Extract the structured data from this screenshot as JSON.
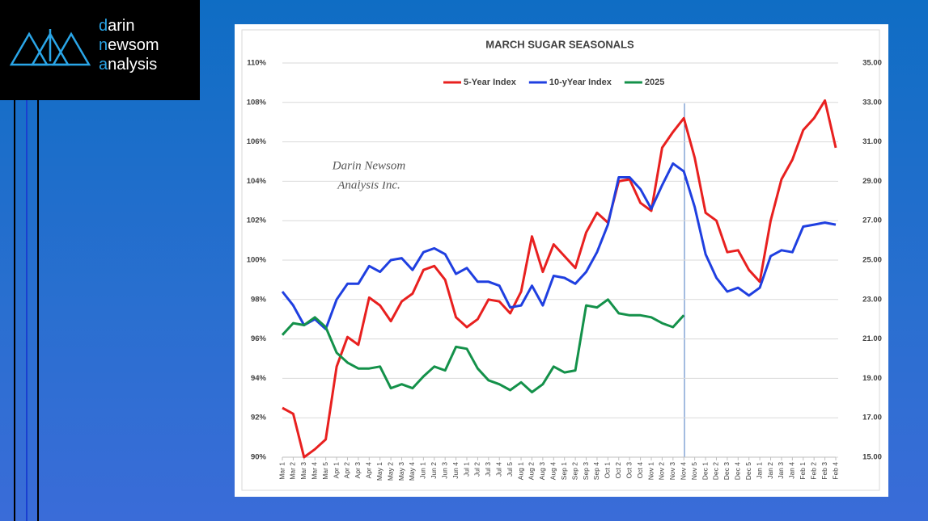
{
  "logo": [
    "darin",
    "newsom",
    "analysis"
  ],
  "chart_data": {
    "type": "line",
    "title": "MARCH SUGAR SEASONALS",
    "watermark": [
      "Darin Newsom",
      "Analysis Inc."
    ],
    "categories": [
      "Mar 1",
      "Mar 2",
      "Mar 3",
      "Mar 4",
      "Mar 5",
      "Apr 1",
      "Apr 2",
      "Apr 3",
      "Apr 4",
      "May 1",
      "May 2",
      "May 3",
      "May 4",
      "Jun 1",
      "Jun 2",
      "Jun 3",
      "Jun 4",
      "Jul 1",
      "Jul 2",
      "Jul 3",
      "Jul 4",
      "Jul 5",
      "Aug 1",
      "Aug 2",
      "Aug 3",
      "Aug 4",
      "Sep 1",
      "Sep 2",
      "Sep 3",
      "Sep 4",
      "Oct 1",
      "Oct 2",
      "Oct 3",
      "Oct 4",
      "Nov 1",
      "Nov 2",
      "Nov 3",
      "Nov 4",
      "Nov 5",
      "Dec 1",
      "Dec 2",
      "Dec 3",
      "Dec 4",
      "Dec 5",
      "Jan 1",
      "Jan 2",
      "Jan 3",
      "Jan 4",
      "Feb 1",
      "Feb 2",
      "Feb 3",
      "Feb 4"
    ],
    "series": [
      {
        "name": "5-Year Index",
        "color": "#e8201f",
        "axis": "y",
        "values": [
          92.5,
          92.2,
          90.0,
          90.4,
          90.9,
          94.6,
          96.1,
          95.7,
          98.1,
          97.7,
          96.9,
          97.9,
          98.3,
          99.5,
          99.7,
          99.0,
          97.1,
          96.6,
          97.0,
          98.0,
          97.9,
          97.3,
          98.4,
          101.2,
          99.4,
          100.8,
          100.2,
          99.6,
          101.4,
          102.4,
          101.9,
          104.0,
          104.1,
          102.9,
          102.5,
          105.7,
          106.5,
          107.2,
          105.2,
          102.4,
          102.0,
          100.4,
          100.5,
          99.5,
          98.9,
          102.0,
          104.1,
          105.1,
          106.6,
          107.2,
          108.1,
          105.7
        ]
      },
      {
        "name": "10-yYear Index",
        "color": "#1f3fe0",
        "axis": "y",
        "values": [
          98.4,
          97.7,
          96.7,
          97.0,
          96.5,
          98.0,
          98.8,
          98.8,
          99.7,
          99.4,
          100.0,
          100.1,
          99.5,
          100.4,
          100.6,
          100.3,
          99.3,
          99.6,
          98.9,
          98.9,
          98.7,
          97.6,
          97.7,
          98.7,
          97.7,
          99.2,
          99.1,
          98.8,
          99.4,
          100.4,
          101.8,
          104.2,
          104.2,
          103.6,
          102.6,
          103.8,
          104.9,
          104.5,
          102.7,
          100.3,
          99.1,
          98.4,
          98.6,
          98.2,
          98.6,
          100.2,
          100.5,
          100.4,
          101.7,
          101.8,
          101.9,
          101.8
        ]
      },
      {
        "name": "2025",
        "color": "#14914a",
        "axis": "y2",
        "values": [
          21.2,
          21.8,
          21.7,
          22.1,
          21.6,
          20.3,
          19.8,
          19.5,
          19.5,
          19.6,
          18.5,
          18.7,
          18.5,
          19.1,
          19.6,
          19.4,
          20.6,
          20.5,
          19.5,
          18.9,
          18.7,
          18.4,
          18.8,
          18.3,
          18.7,
          19.6,
          19.3,
          19.4,
          22.7,
          22.6,
          23.0,
          22.3,
          22.2,
          22.2,
          22.1,
          21.8,
          21.6,
          22.2,
          null,
          null,
          null,
          null,
          null,
          null,
          null,
          null,
          null,
          null,
          null,
          null,
          null,
          null
        ]
      }
    ],
    "ylim": [
      90,
      110
    ],
    "yticks": [
      {
        "value": 90,
        "label": "90%"
      },
      {
        "value": 92,
        "label": "92%"
      },
      {
        "value": 94,
        "label": "94%"
      },
      {
        "value": 96,
        "label": "96%"
      },
      {
        "value": 98,
        "label": "98%"
      },
      {
        "value": 100,
        "label": "100%"
      },
      {
        "value": 102,
        "label": "102%"
      },
      {
        "value": 104,
        "label": "104%"
      },
      {
        "value": 106,
        "label": "106%"
      },
      {
        "value": 108,
        "label": "108%"
      },
      {
        "value": 110,
        "label": "110%"
      }
    ],
    "y2lim": [
      15,
      35
    ],
    "y2ticks": [
      {
        "value": 15,
        "label": "15.00"
      },
      {
        "value": 17,
        "label": "17.00"
      },
      {
        "value": 19,
        "label": "19.00"
      },
      {
        "value": 21,
        "label": "21.00"
      },
      {
        "value": 23,
        "label": "23.00"
      },
      {
        "value": 25,
        "label": "25.00"
      },
      {
        "value": 27,
        "label": "27.00"
      },
      {
        "value": 29,
        "label": "29.00"
      },
      {
        "value": 31,
        "label": "31.00"
      },
      {
        "value": 33,
        "label": "33.00"
      },
      {
        "value": 35,
        "label": "35.00"
      }
    ],
    "grid": true,
    "legend": "top"
  }
}
